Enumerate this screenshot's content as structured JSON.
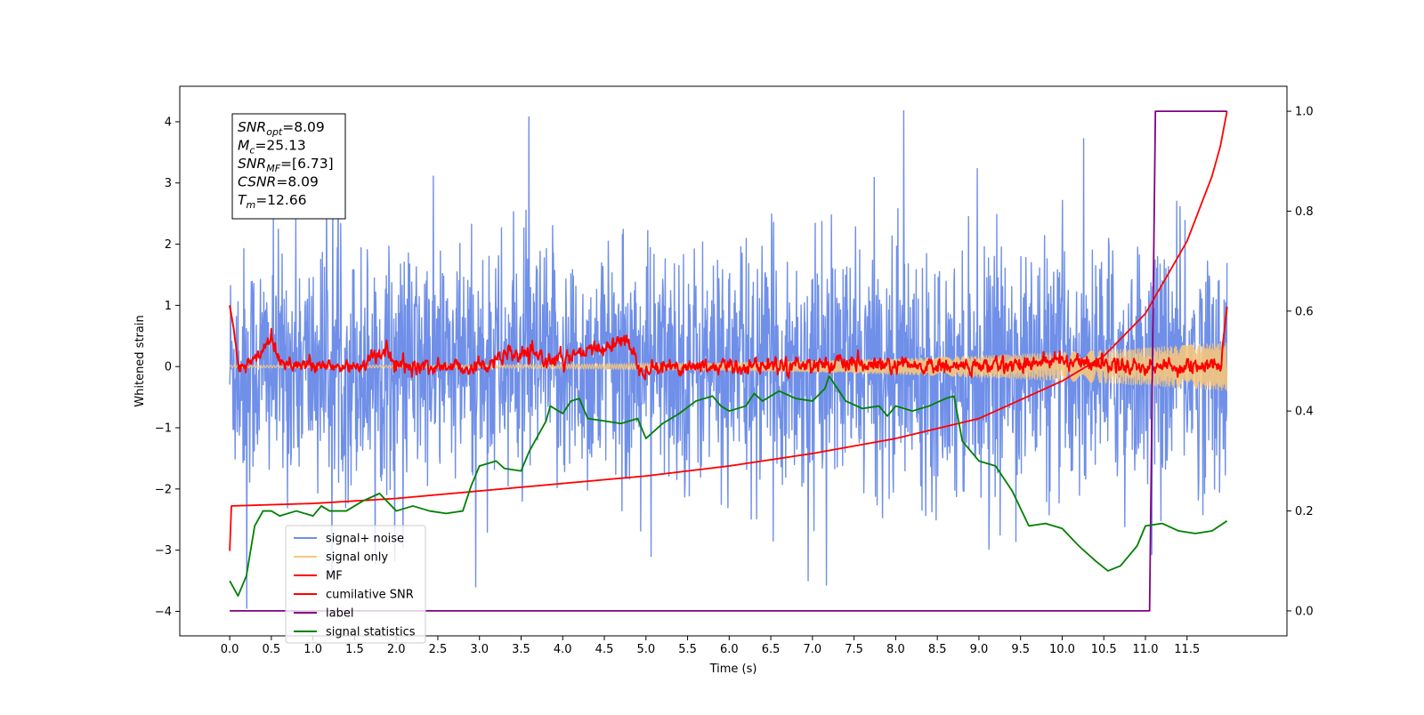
{
  "chart_data": {
    "type": "line",
    "title": "",
    "xlabel": "Time (s)",
    "ylabel": "Whitened strain",
    "y2label": "",
    "xlim": [
      -0.6,
      12.7
    ],
    "ylim": [
      -4.4,
      4.58
    ],
    "y2lim": [
      -0.05,
      1.05
    ],
    "xticks": [
      0.0,
      0.5,
      1.0,
      1.5,
      2.0,
      2.5,
      3.0,
      3.5,
      4.0,
      4.5,
      5.0,
      5.5,
      6.0,
      6.5,
      7.0,
      7.5,
      8.0,
      8.5,
      9.0,
      9.5,
      10.0,
      10.5,
      11.0,
      11.5
    ],
    "xtick_labels": [
      "0.0",
      "0.5",
      "1.0",
      "1.5",
      "2.0",
      "2.5",
      "3.0",
      "3.5",
      "4.0",
      "4.5",
      "5.0",
      "5.5",
      "6.0",
      "6.5",
      "7.0",
      "7.5",
      "8.0",
      "8.5",
      "9.0",
      "9.5",
      "10.0",
      "10.5",
      "11.0",
      "11.5"
    ],
    "yticks": [
      -4,
      -3,
      -2,
      -1,
      0,
      1,
      2,
      3,
      4
    ],
    "ytick_labels": [
      "−4",
      "−3",
      "−2",
      "−1",
      "0",
      "1",
      "2",
      "3",
      "4"
    ],
    "y2ticks": [
      0.0,
      0.2,
      0.4,
      0.6,
      0.8,
      1.0
    ],
    "y2tick_labels": [
      "0.0",
      "0.2",
      "0.4",
      "0.6",
      "0.8",
      "1.0"
    ],
    "grid": false,
    "legend_position": "lower-left",
    "annotation": {
      "lines": [
        {
          "sym": "SNR",
          "sub": "opt",
          "rest": "=8.09"
        },
        {
          "sym": "M",
          "sub": "c",
          "rest": "=25.13"
        },
        {
          "sym": "SNR",
          "sub": "MF",
          "rest": "=[6.73]"
        },
        {
          "sym": "CSNR",
          "sub": "",
          "rest": "=8.09"
        },
        {
          "sym": "T",
          "sub": "m",
          "rest": "=12.66"
        }
      ]
    },
    "series": [
      {
        "name": "signal+ noise",
        "color": "#6f8fe8",
        "axis": "left",
        "kind": "noise",
        "t_range": [
          0.0,
          11.98
        ],
        "band": [
          -2.3,
          2.3
        ],
        "extremes": {
          "max": 4.18,
          "min": -3.95
        }
      },
      {
        "name": "signal only",
        "color": "#f5c77e",
        "axis": "left",
        "kind": "chirp",
        "t_range": [
          0.0,
          11.98
        ],
        "amplitude_start": 0.02,
        "amplitude_end": 0.4
      },
      {
        "name": "MF",
        "color": "#ff0000",
        "axis": "left",
        "kind": "mf",
        "t_range": [
          0.0,
          11.98
        ],
        "points": [
          [
            0.0,
            1.0
          ],
          [
            0.05,
            0.6
          ],
          [
            0.1,
            0.0
          ],
          [
            0.3,
            0.1
          ],
          [
            0.5,
            0.5
          ],
          [
            0.6,
            0.1
          ],
          [
            1.0,
            0.0
          ],
          [
            1.5,
            0.0
          ],
          [
            1.9,
            0.25
          ],
          [
            2.0,
            0.0
          ],
          [
            3.0,
            0.0
          ],
          [
            3.4,
            0.2
          ],
          [
            4.0,
            0.1
          ],
          [
            4.8,
            0.45
          ],
          [
            4.9,
            0.0
          ],
          [
            5.5,
            0.0
          ],
          [
            6.0,
            0.0
          ],
          [
            7.0,
            0.05
          ],
          [
            8.0,
            0.0
          ],
          [
            9.0,
            0.0
          ],
          [
            10.0,
            0.1
          ],
          [
            11.0,
            0.0
          ],
          [
            11.9,
            0.0
          ],
          [
            11.98,
            0.98
          ]
        ]
      },
      {
        "name": "cumilative SNR",
        "color": "#ff0000",
        "axis": "right",
        "points": [
          [
            0.0,
            0.12
          ],
          [
            0.02,
            0.21
          ],
          [
            1.0,
            0.215
          ],
          [
            2.0,
            0.225
          ],
          [
            3.0,
            0.24
          ],
          [
            4.0,
            0.255
          ],
          [
            5.0,
            0.27
          ],
          [
            6.0,
            0.29
          ],
          [
            7.0,
            0.315
          ],
          [
            8.0,
            0.345
          ],
          [
            9.0,
            0.385
          ],
          [
            10.0,
            0.46
          ],
          [
            10.5,
            0.51
          ],
          [
            11.0,
            0.595
          ],
          [
            11.5,
            0.74
          ],
          [
            11.8,
            0.87
          ],
          [
            11.9,
            0.93
          ],
          [
            11.98,
            1.0
          ]
        ]
      },
      {
        "name": "label",
        "color": "#800080",
        "axis": "right",
        "points": [
          [
            0.0,
            0.0
          ],
          [
            11.05,
            0.0
          ],
          [
            11.12,
            1.0
          ],
          [
            11.98,
            1.0
          ]
        ]
      },
      {
        "name": "signal statistics",
        "color": "#008000",
        "axis": "right",
        "points": [
          [
            0.0,
            0.06
          ],
          [
            0.1,
            0.03
          ],
          [
            0.2,
            0.07
          ],
          [
            0.3,
            0.17
          ],
          [
            0.4,
            0.2
          ],
          [
            0.5,
            0.2
          ],
          [
            0.6,
            0.19
          ],
          [
            0.8,
            0.2
          ],
          [
            1.0,
            0.19
          ],
          [
            1.1,
            0.21
          ],
          [
            1.2,
            0.2
          ],
          [
            1.4,
            0.2
          ],
          [
            1.6,
            0.22
          ],
          [
            1.8,
            0.235
          ],
          [
            2.0,
            0.2
          ],
          [
            2.2,
            0.21
          ],
          [
            2.4,
            0.2
          ],
          [
            2.6,
            0.195
          ],
          [
            2.8,
            0.2
          ],
          [
            2.9,
            0.25
          ],
          [
            3.0,
            0.29
          ],
          [
            3.2,
            0.3
          ],
          [
            3.3,
            0.285
          ],
          [
            3.5,
            0.28
          ],
          [
            3.6,
            0.32
          ],
          [
            3.8,
            0.38
          ],
          [
            3.85,
            0.41
          ],
          [
            4.0,
            0.395
          ],
          [
            4.1,
            0.42
          ],
          [
            4.2,
            0.425
          ],
          [
            4.3,
            0.385
          ],
          [
            4.5,
            0.38
          ],
          [
            4.7,
            0.375
          ],
          [
            4.9,
            0.385
          ],
          [
            5.0,
            0.345
          ],
          [
            5.2,
            0.375
          ],
          [
            5.4,
            0.395
          ],
          [
            5.6,
            0.42
          ],
          [
            5.8,
            0.43
          ],
          [
            5.9,
            0.41
          ],
          [
            6.0,
            0.4
          ],
          [
            6.2,
            0.41
          ],
          [
            6.3,
            0.435
          ],
          [
            6.4,
            0.42
          ],
          [
            6.5,
            0.43
          ],
          [
            6.6,
            0.44
          ],
          [
            6.8,
            0.425
          ],
          [
            7.0,
            0.42
          ],
          [
            7.15,
            0.445
          ],
          [
            7.2,
            0.47
          ],
          [
            7.3,
            0.445
          ],
          [
            7.4,
            0.42
          ],
          [
            7.6,
            0.405
          ],
          [
            7.8,
            0.41
          ],
          [
            7.9,
            0.39
          ],
          [
            8.0,
            0.41
          ],
          [
            8.2,
            0.4
          ],
          [
            8.4,
            0.41
          ],
          [
            8.6,
            0.425
          ],
          [
            8.7,
            0.43
          ],
          [
            8.8,
            0.34
          ],
          [
            9.0,
            0.3
          ],
          [
            9.2,
            0.29
          ],
          [
            9.4,
            0.24
          ],
          [
            9.6,
            0.17
          ],
          [
            9.8,
            0.175
          ],
          [
            10.0,
            0.165
          ],
          [
            10.2,
            0.13
          ],
          [
            10.4,
            0.1
          ],
          [
            10.55,
            0.08
          ],
          [
            10.7,
            0.09
          ],
          [
            10.9,
            0.13
          ],
          [
            11.0,
            0.17
          ],
          [
            11.2,
            0.175
          ],
          [
            11.4,
            0.16
          ],
          [
            11.6,
            0.155
          ],
          [
            11.8,
            0.16
          ],
          [
            11.98,
            0.18
          ]
        ]
      }
    ]
  }
}
